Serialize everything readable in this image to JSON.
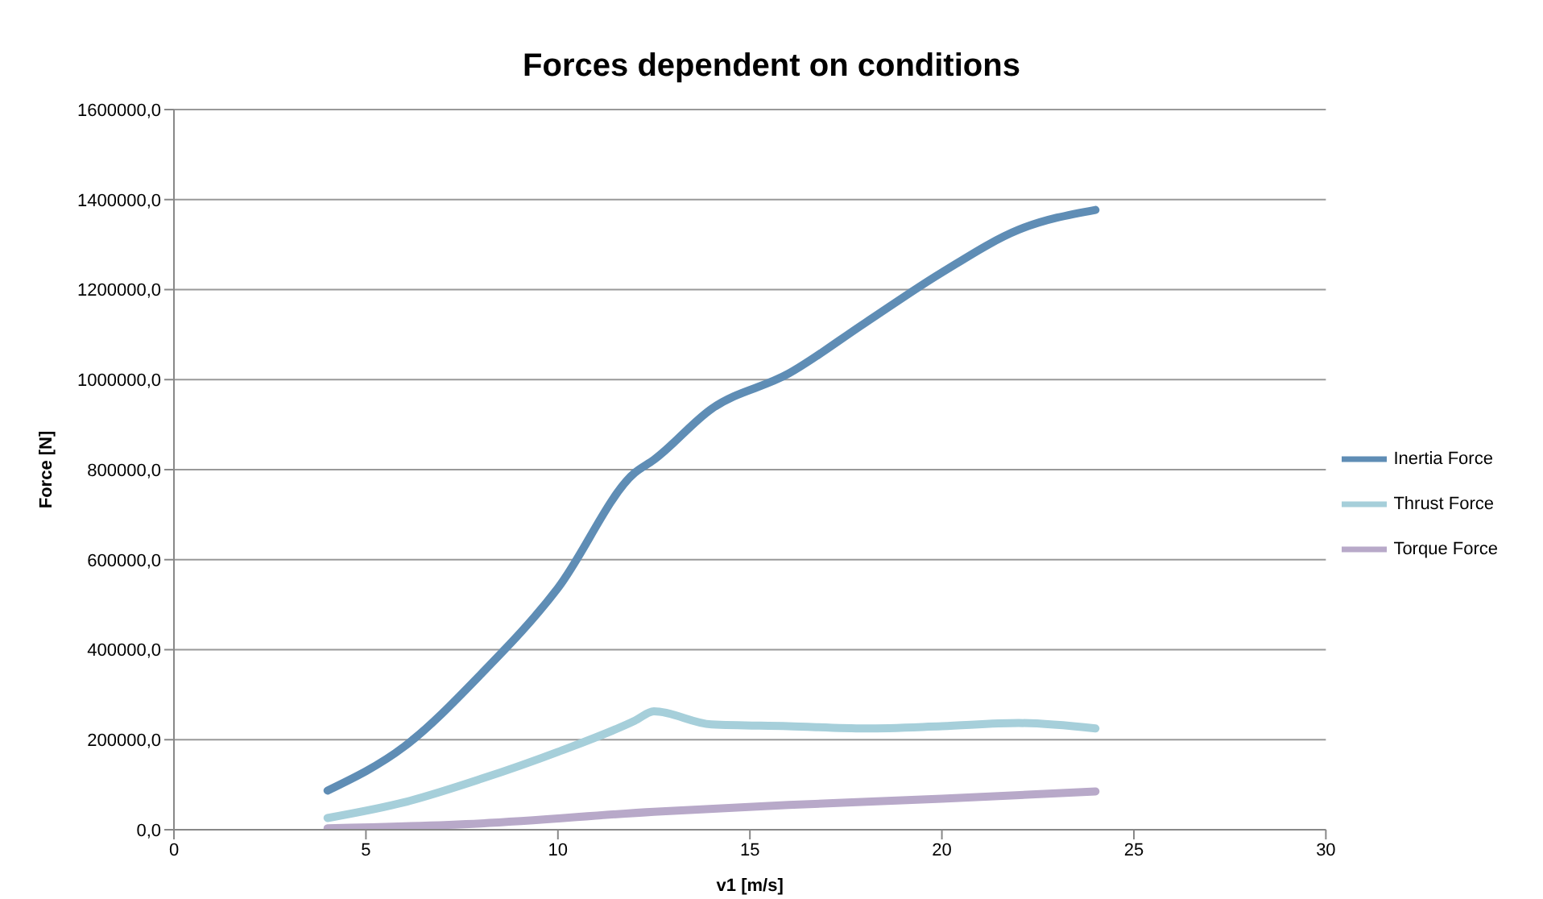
{
  "chart_data": {
    "type": "line",
    "title": "Forces dependent on conditions",
    "xlabel": "v1 [m/s]",
    "ylabel": "Force [N]",
    "xlim": [
      0,
      30
    ],
    "xticks": [
      0,
      5,
      10,
      15,
      20,
      25,
      30
    ],
    "ylim": [
      0,
      1600000
    ],
    "yticks": [
      {
        "value": 0,
        "label": "0,0"
      },
      {
        "value": 200000,
        "label": "200000,0"
      },
      {
        "value": 400000,
        "label": "400000,0"
      },
      {
        "value": 600000,
        "label": "600000,0"
      },
      {
        "value": 800000,
        "label": "800000,0"
      },
      {
        "value": 1000000,
        "label": "1000000,0"
      },
      {
        "value": 1200000,
        "label": "1200000,0"
      },
      {
        "value": 1400000,
        "label": "1400000,0"
      },
      {
        "value": 1600000,
        "label": "1600000,0"
      }
    ],
    "grid": "y",
    "legend": "right",
    "marker": "none",
    "line_style": "solid",
    "series": [
      {
        "name": "Torque Force",
        "color": "#b8a9c9",
        "x": [
          4,
          8,
          12.5,
          16,
          20,
          24
        ],
        "values": [
          3000,
          14000,
          40000,
          55000,
          69000,
          85000
        ]
      },
      {
        "name": "Thrust Force",
        "color": "#a6cfda",
        "x": [
          4,
          6,
          8,
          10,
          12,
          12.5,
          14,
          16,
          18,
          20,
          22,
          24
        ],
        "values": [
          26000,
          61000,
          113000,
          173000,
          242000,
          263000,
          234000,
          230000,
          225000,
          230000,
          237000,
          225000
        ]
      },
      {
        "name": "Inertia Force",
        "color": "#5f8db5",
        "x": [
          4,
          6,
          8,
          10,
          12,
          12.5,
          14,
          16,
          18,
          20,
          22,
          24
        ],
        "values": [
          87000,
          185000,
          346000,
          537000,
          793000,
          822000,
          935000,
          1013000,
          1126000,
          1238000,
          1333000,
          1377000
        ]
      }
    ]
  }
}
